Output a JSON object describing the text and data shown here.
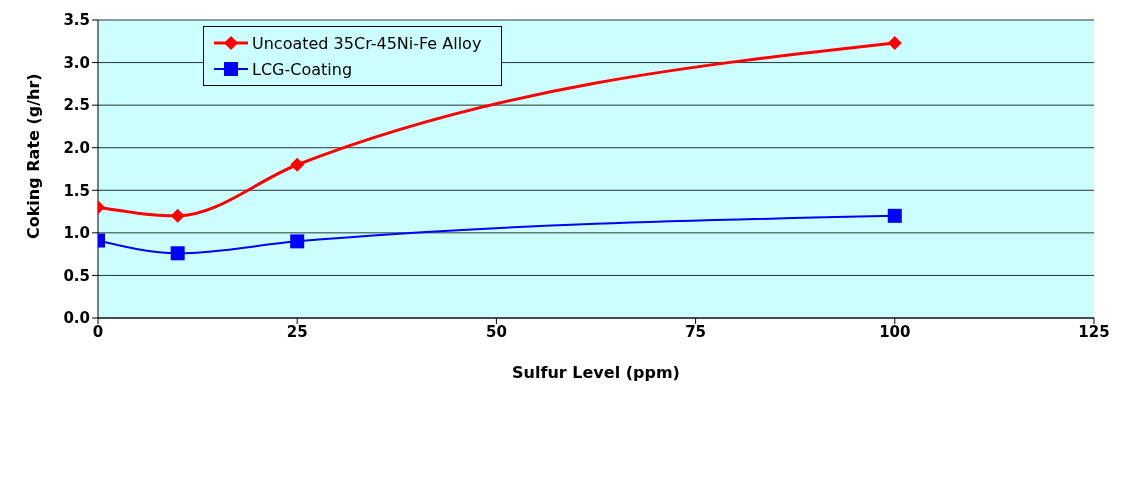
{
  "chart_data": {
    "type": "line",
    "xlabel": "Sulfur Level (ppm)",
    "ylabel": "Coking Rate (g/hr)",
    "x": [
      0,
      10,
      25,
      100
    ],
    "series": [
      {
        "name": "Uncoated 35Cr-45Ni-Fe Alloy",
        "color": "#ff0000",
        "marker": "diamond",
        "values": [
          1.3,
          1.2,
          1.8,
          3.23
        ]
      },
      {
        "name": "LCG-Coating",
        "color": "#0000ff",
        "marker": "square",
        "values": [
          0.91,
          0.76,
          0.9,
          1.2
        ]
      }
    ],
    "xlim": [
      0,
      125
    ],
    "xticks": [
      0,
      25,
      50,
      75,
      100,
      125
    ],
    "ylim": [
      0,
      3.5
    ],
    "yticks": [
      {
        "value": 0,
        "label": "0.0"
      },
      {
        "value": 0.5,
        "label": "0.5"
      },
      {
        "value": 1,
        "label": "1.0"
      },
      {
        "value": 1.5,
        "label": "1.5"
      },
      {
        "value": 2,
        "label": "2.0"
      },
      {
        "value": 2.5,
        "label": "2.5"
      },
      {
        "value": 3,
        "label": "3.0"
      },
      {
        "value": 3.5,
        "label": "3.5"
      }
    ],
    "grid": "y",
    "legend": "top left"
  }
}
